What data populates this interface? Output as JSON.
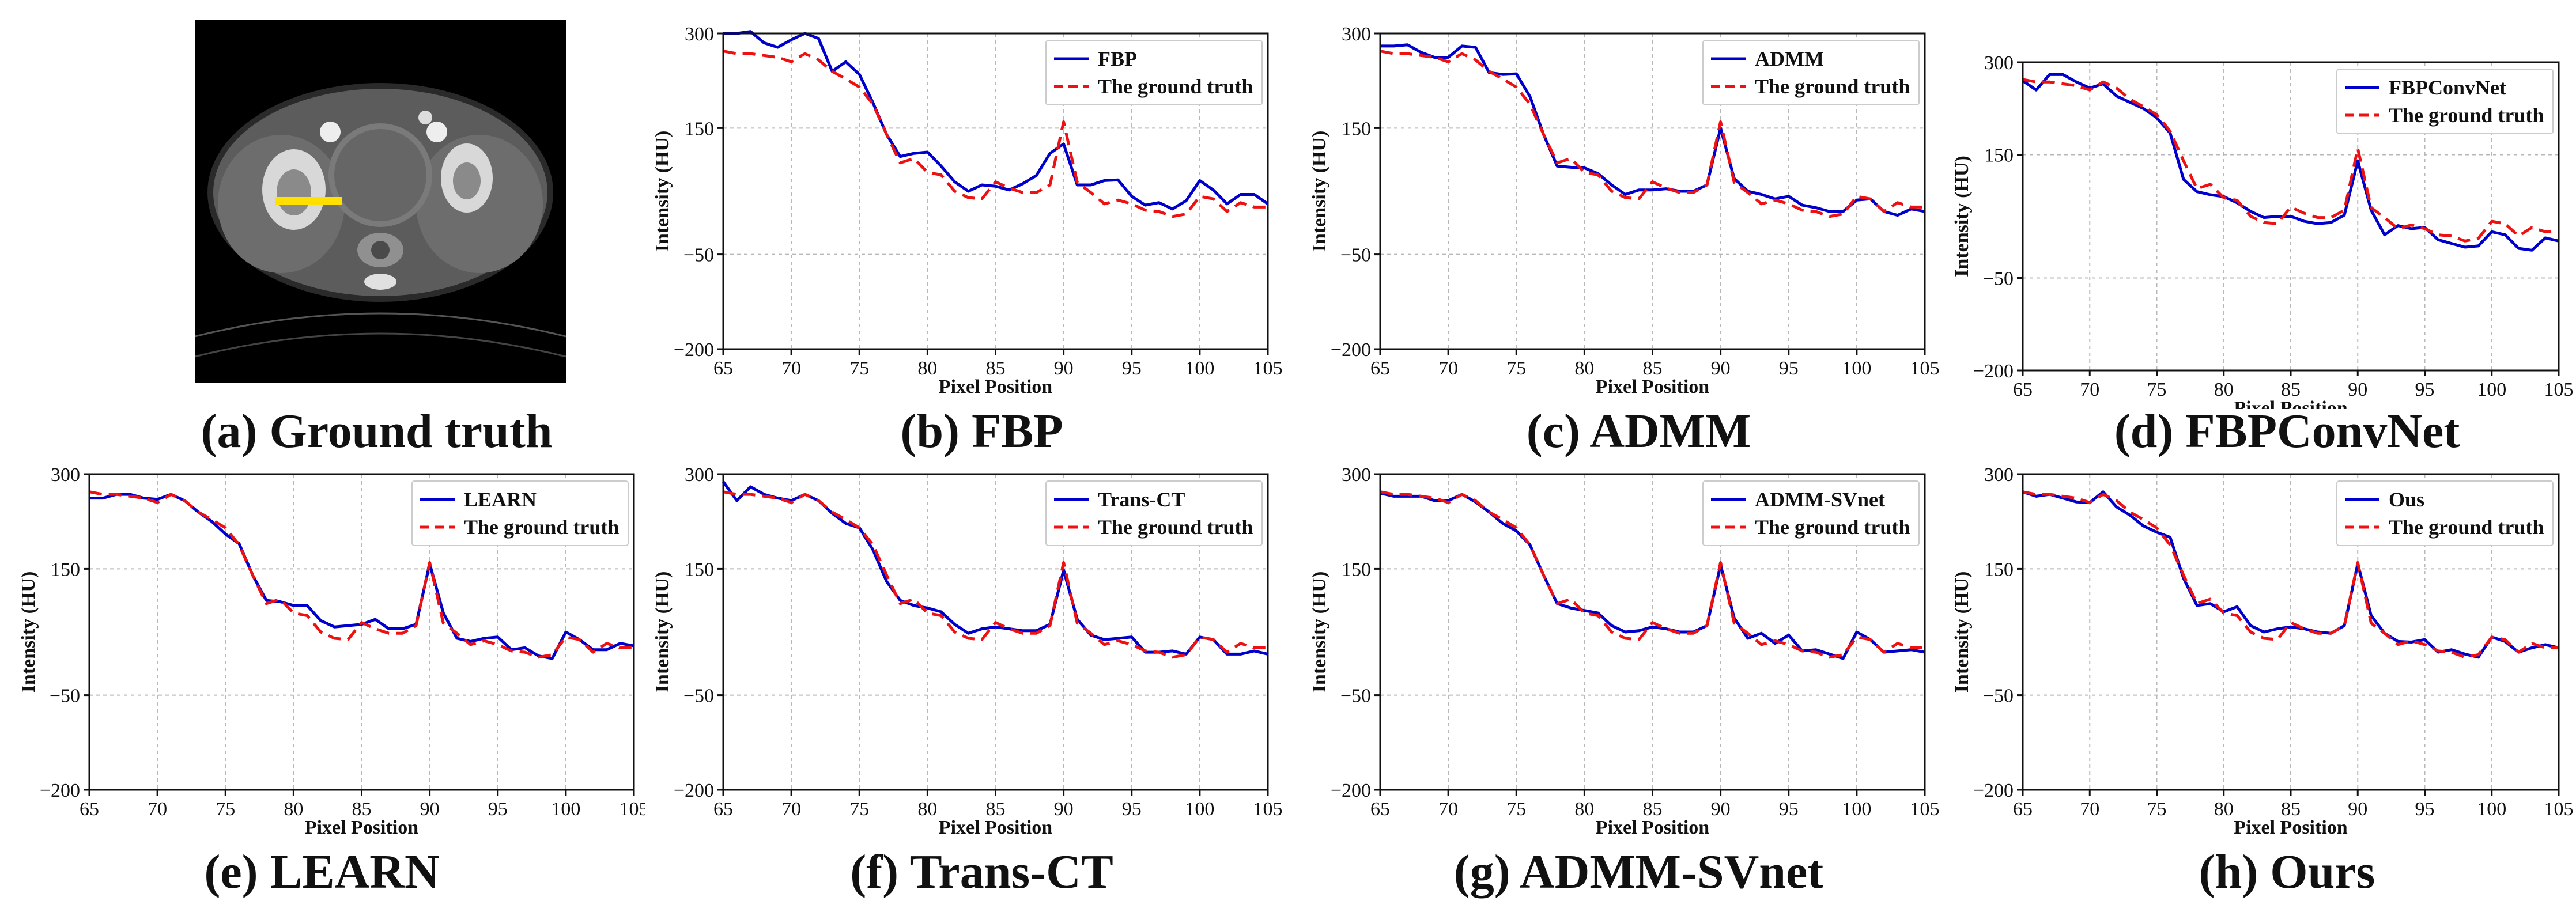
{
  "captions": [
    "(a) Ground truth",
    "(b) FBP",
    "(c) ADMM",
    "(d) FBPConvNet",
    "(e) LEARN",
    "(f) Trans-CT",
    "(g) ADMM-SVnet",
    "(h) Ours"
  ],
  "colors": {
    "method": "#0000cc",
    "ground_truth": "#ee1111",
    "marker": "#ffe000"
  },
  "chart_data": [
    {
      "type": "line",
      "xlabel": "Pixel Position",
      "ylabel": "Intensity (HU)",
      "xlim": [
        65,
        105
      ],
      "ylim": [
        -200,
        300
      ],
      "xticks": [
        65,
        70,
        75,
        80,
        85,
        90,
        95,
        100,
        105
      ],
      "yticks": [
        -200,
        -50,
        150,
        300
      ],
      "grid": true,
      "legend": "top-right",
      "x": [
        65,
        66,
        67,
        68,
        69,
        70,
        71,
        72,
        73,
        74,
        75,
        76,
        77,
        78,
        79,
        80,
        81,
        82,
        83,
        84,
        85,
        86,
        87,
        88,
        89,
        90,
        91,
        92,
        93,
        94,
        95,
        96,
        97,
        98,
        99,
        100,
        101,
        102,
        103,
        104,
        105
      ],
      "series": [
        {
          "name": "FBP",
          "values": [
            300,
            300,
            305,
            285,
            278,
            290,
            300,
            292,
            240,
            255,
            235,
            190,
            140,
            105,
            110,
            112,
            90,
            65,
            50,
            60,
            58,
            52,
            62,
            75,
            110,
            125,
            60,
            60,
            67,
            68,
            42,
            28,
            32,
            22,
            35,
            67,
            52,
            30,
            45,
            45,
            30
          ]
        },
        {
          "name": "The ground truth",
          "values": [
            272,
            268,
            268,
            265,
            262,
            255,
            268,
            258,
            240,
            228,
            215,
            188,
            140,
            95,
            102,
            80,
            76,
            50,
            40,
            38,
            65,
            55,
            48,
            48,
            60,
            160,
            64,
            48,
            30,
            36,
            30,
            20,
            18,
            10,
            14,
            42,
            38,
            18,
            32,
            25,
            25
          ]
        }
      ]
    },
    {
      "type": "line",
      "xlabel": "Pixel Position",
      "ylabel": "Intensity (HU)",
      "xlim": [
        65,
        105
      ],
      "ylim": [
        -200,
        300
      ],
      "xticks": [
        65,
        70,
        75,
        80,
        85,
        90,
        95,
        100,
        105
      ],
      "yticks": [
        -200,
        -50,
        150,
        300
      ],
      "grid": true,
      "legend": "top-right",
      "x": [
        65,
        66,
        67,
        68,
        69,
        70,
        71,
        72,
        73,
        74,
        75,
        76,
        77,
        78,
        79,
        80,
        81,
        82,
        83,
        84,
        85,
        86,
        87,
        88,
        89,
        90,
        91,
        92,
        93,
        94,
        95,
        96,
        97,
        98,
        99,
        100,
        101,
        102,
        103,
        104,
        105
      ],
      "series": [
        {
          "name": "ADMM",
          "values": [
            280,
            280,
            282,
            270,
            262,
            262,
            280,
            278,
            238,
            235,
            236,
            200,
            140,
            90,
            88,
            87,
            78,
            60,
            45,
            52,
            52,
            54,
            50,
            50,
            60,
            150,
            70,
            50,
            45,
            38,
            42,
            28,
            24,
            18,
            18,
            36,
            38,
            18,
            12,
            22,
            18
          ]
        },
        {
          "name": "The ground truth",
          "values": [
            272,
            268,
            268,
            265,
            262,
            255,
            268,
            258,
            240,
            228,
            215,
            188,
            140,
            95,
            102,
            80,
            76,
            50,
            40,
            38,
            65,
            55,
            48,
            48,
            60,
            160,
            64,
            48,
            30,
            36,
            30,
            20,
            18,
            10,
            14,
            42,
            38,
            18,
            32,
            25,
            25
          ]
        }
      ]
    },
    {
      "type": "line",
      "xlabel": "Pixel Position",
      "ylabel": "Intensity (HU)",
      "xlim": [
        65,
        105
      ],
      "ylim": [
        -200,
        300
      ],
      "xticks": [
        65,
        70,
        75,
        80,
        85,
        90,
        95,
        100,
        105
      ],
      "yticks": [
        -200,
        -50,
        150,
        300
      ],
      "grid": true,
      "legend": "top-right",
      "x": [
        65,
        66,
        67,
        68,
        69,
        70,
        71,
        72,
        73,
        74,
        75,
        76,
        77,
        78,
        79,
        80,
        81,
        82,
        83,
        84,
        85,
        86,
        87,
        88,
        89,
        90,
        91,
        92,
        93,
        94,
        95,
        96,
        97,
        98,
        99,
        100,
        101,
        102,
        103,
        104,
        105
      ],
      "series": [
        {
          "name": "FBPConvNet",
          "values": [
            270,
            255,
            280,
            280,
            268,
            258,
            265,
            245,
            235,
            225,
            210,
            185,
            110,
            90,
            85,
            82,
            72,
            58,
            48,
            50,
            50,
            42,
            38,
            40,
            52,
            140,
            60,
            20,
            35,
            30,
            32,
            12,
            6,
            0,
            2,
            25,
            20,
            -2,
            -5,
            15,
            10
          ]
        },
        {
          "name": "The ground truth",
          "values": [
            272,
            268,
            268,
            265,
            262,
            255,
            268,
            258,
            240,
            228,
            215,
            188,
            140,
            95,
            102,
            80,
            76,
            50,
            40,
            38,
            65,
            55,
            48,
            48,
            60,
            160,
            64,
            48,
            30,
            36,
            30,
            20,
            18,
            10,
            14,
            42,
            38,
            18,
            32,
            25,
            25
          ]
        }
      ]
    },
    {
      "type": "line",
      "xlabel": "Pixel Position",
      "ylabel": "Intensity (HU)",
      "xlim": [
        65,
        105
      ],
      "ylim": [
        -200,
        300
      ],
      "xticks": [
        65,
        70,
        75,
        80,
        85,
        90,
        95,
        100,
        105
      ],
      "yticks": [
        -200,
        -50,
        150,
        300
      ],
      "grid": true,
      "legend": "top-right",
      "x": [
        65,
        66,
        67,
        68,
        69,
        70,
        71,
        72,
        73,
        74,
        75,
        76,
        77,
        78,
        79,
        80,
        81,
        82,
        83,
        84,
        85,
        86,
        87,
        88,
        89,
        90,
        91,
        92,
        93,
        94,
        95,
        96,
        97,
        98,
        99,
        100,
        101,
        102,
        103,
        104,
        105
      ],
      "series": [
        {
          "name": "LEARN",
          "values": [
            262,
            262,
            268,
            268,
            262,
            260,
            268,
            258,
            240,
            225,
            205,
            190,
            140,
            100,
            98,
            92,
            92,
            68,
            58,
            60,
            62,
            70,
            55,
            55,
            62,
            158,
            80,
            40,
            35,
            40,
            42,
            22,
            25,
            12,
            8,
            50,
            38,
            22,
            22,
            32,
            28
          ]
        },
        {
          "name": "The ground truth",
          "values": [
            272,
            268,
            268,
            265,
            262,
            255,
            268,
            258,
            240,
            228,
            215,
            188,
            140,
            95,
            102,
            80,
            76,
            50,
            40,
            38,
            65,
            55,
            48,
            48,
            60,
            160,
            64,
            48,
            30,
            36,
            30,
            20,
            18,
            10,
            14,
            42,
            38,
            18,
            32,
            25,
            25
          ]
        }
      ]
    },
    {
      "type": "line",
      "xlabel": "Pixel Position",
      "ylabel": "Intensity (HU)",
      "xlim": [
        65,
        105
      ],
      "ylim": [
        -200,
        300
      ],
      "xticks": [
        65,
        70,
        75,
        80,
        85,
        90,
        95,
        100,
        105
      ],
      "yticks": [
        -200,
        -50,
        150,
        300
      ],
      "grid": true,
      "legend": "top-right",
      "x": [
        65,
        66,
        67,
        68,
        69,
        70,
        71,
        72,
        73,
        74,
        75,
        76,
        77,
        78,
        79,
        80,
        81,
        82,
        83,
        84,
        85,
        86,
        87,
        88,
        89,
        90,
        91,
        92,
        93,
        94,
        95,
        96,
        97,
        98,
        99,
        100,
        101,
        102,
        103,
        104,
        105
      ],
      "series": [
        {
          "name": "Trans-CT",
          "values": [
            288,
            258,
            280,
            268,
            262,
            258,
            268,
            258,
            238,
            222,
            215,
            180,
            130,
            100,
            92,
            88,
            82,
            62,
            48,
            55,
            58,
            55,
            52,
            52,
            62,
            148,
            70,
            45,
            38,
            40,
            42,
            18,
            18,
            20,
            15,
            42,
            38,
            15,
            15,
            20,
            15
          ]
        },
        {
          "name": "The ground truth",
          "values": [
            272,
            268,
            268,
            265,
            262,
            255,
            268,
            258,
            240,
            228,
            215,
            188,
            140,
            95,
            102,
            80,
            76,
            50,
            40,
            38,
            65,
            55,
            48,
            48,
            60,
            160,
            64,
            48,
            30,
            36,
            30,
            20,
            18,
            10,
            14,
            42,
            38,
            18,
            32,
            25,
            25
          ]
        }
      ]
    },
    {
      "type": "line",
      "xlabel": "Pixel Position",
      "ylabel": "Intensity (HU)",
      "xlim": [
        65,
        105
      ],
      "ylim": [
        -200,
        300
      ],
      "xticks": [
        65,
        70,
        75,
        80,
        85,
        90,
        95,
        100,
        105
      ],
      "yticks": [
        -200,
        -50,
        150,
        300
      ],
      "grid": true,
      "legend": "top-right",
      "x": [
        65,
        66,
        67,
        68,
        69,
        70,
        71,
        72,
        73,
        74,
        75,
        76,
        77,
        78,
        79,
        80,
        81,
        82,
        83,
        84,
        85,
        86,
        87,
        88,
        89,
        90,
        91,
        92,
        93,
        94,
        95,
        96,
        97,
        98,
        99,
        100,
        101,
        102,
        103,
        104,
        105
      ],
      "series": [
        {
          "name": "ADMM-SVnet",
          "values": [
            270,
            265,
            265,
            265,
            258,
            258,
            268,
            256,
            240,
            222,
            210,
            188,
            140,
            95,
            88,
            84,
            80,
            60,
            50,
            52,
            58,
            55,
            50,
            50,
            60,
            156,
            72,
            40,
            48,
            32,
            45,
            20,
            22,
            15,
            8,
            50,
            38,
            18,
            20,
            22,
            18
          ]
        },
        {
          "name": "The ground truth",
          "values": [
            272,
            268,
            268,
            265,
            262,
            255,
            268,
            258,
            240,
            228,
            215,
            188,
            140,
            95,
            102,
            80,
            76,
            50,
            40,
            38,
            65,
            55,
            48,
            48,
            60,
            160,
            64,
            48,
            30,
            36,
            30,
            20,
            18,
            10,
            14,
            42,
            38,
            18,
            32,
            25,
            25
          ]
        }
      ]
    },
    {
      "type": "line",
      "xlabel": "Pixel Position",
      "ylabel": "Intensity (HU)",
      "xlim": [
        65,
        105
      ],
      "ylim": [
        -200,
        300
      ],
      "xticks": [
        65,
        70,
        75,
        80,
        85,
        90,
        95,
        100,
        105
      ],
      "yticks": [
        -200,
        -50,
        150,
        300
      ],
      "grid": true,
      "legend": "top-right",
      "x": [
        65,
        66,
        67,
        68,
        69,
        70,
        71,
        72,
        73,
        74,
        75,
        76,
        77,
        78,
        79,
        80,
        81,
        82,
        83,
        84,
        85,
        86,
        87,
        88,
        89,
        90,
        91,
        92,
        93,
        94,
        95,
        96,
        97,
        98,
        99,
        100,
        101,
        102,
        103,
        104,
        105
      ],
      "series": [
        {
          "name": "Ous",
          "values": [
            272,
            265,
            268,
            262,
            256,
            255,
            272,
            248,
            235,
            218,
            208,
            200,
            135,
            92,
            95,
            82,
            90,
            60,
            50,
            55,
            58,
            55,
            50,
            48,
            60,
            158,
            76,
            48,
            35,
            34,
            38,
            18,
            22,
            15,
            10,
            42,
            35,
            18,
            25,
            30,
            25
          ]
        },
        {
          "name": "The ground truth",
          "values": [
            272,
            268,
            268,
            265,
            262,
            255,
            268,
            258,
            240,
            228,
            215,
            188,
            140,
            95,
            102,
            80,
            76,
            50,
            40,
            38,
            65,
            55,
            48,
            48,
            60,
            160,
            64,
            48,
            30,
            36,
            30,
            20,
            18,
            10,
            14,
            42,
            38,
            18,
            32,
            25,
            25
          ]
        }
      ]
    }
  ]
}
